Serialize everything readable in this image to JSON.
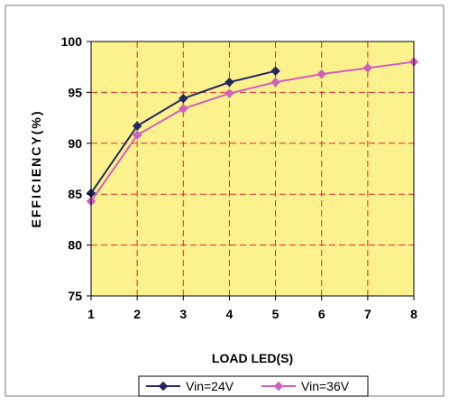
{
  "chart_data": {
    "type": "line",
    "title": "",
    "xlabel": "LOAD LED(S)",
    "ylabel": "EFFICIENCY(%)",
    "x_ticks": [
      "1",
      "2",
      "3",
      "4",
      "5",
      "6",
      "7",
      "8"
    ],
    "y_ticks": [
      "75",
      "80",
      "85",
      "90",
      "95",
      "100"
    ],
    "xlim": [
      1,
      8
    ],
    "ylim": [
      75,
      100
    ],
    "grid": true,
    "legend_position": "bottom",
    "plot_background": "#fbf28d",
    "grid_color": "#e0262f",
    "series": [
      {
        "name": "Vin=24V",
        "color": "#242862",
        "marker": "diamond",
        "x": [
          1,
          2,
          3,
          4,
          5
        ],
        "values": [
          85.1,
          91.7,
          94.4,
          96.0,
          97.1
        ]
      },
      {
        "name": "Vin=36V",
        "color": "#cf5fbe",
        "marker": "diamond",
        "x": [
          1,
          2,
          3,
          4,
          5,
          6,
          7,
          8
        ],
        "values": [
          84.3,
          90.8,
          93.4,
          94.9,
          96.0,
          96.8,
          97.4,
          98.0
        ]
      }
    ]
  }
}
